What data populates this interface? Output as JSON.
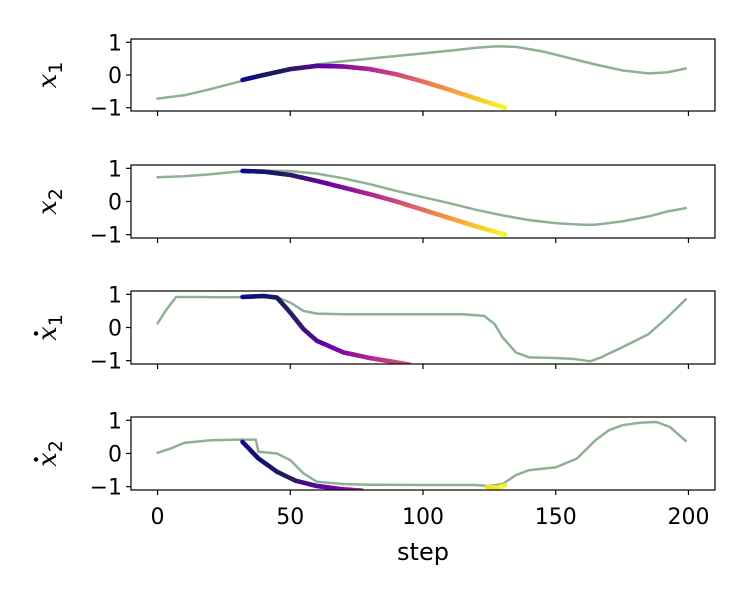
{
  "chart_data": {
    "type": "line",
    "layout": "4 stacked subplots with shared x axis",
    "xlabel": "step",
    "xlim": [
      -10,
      210
    ],
    "xticks": [
      0,
      50,
      100,
      150,
      200
    ],
    "ylim": [
      -1.1,
      1.1
    ],
    "yticks": [
      1,
      0,
      -1
    ],
    "ytick_labels": [
      "1",
      "0",
      "−1"
    ],
    "grid": false,
    "legend": "none",
    "colors": {
      "reference_line": "#8fb193",
      "prediction_colormap": [
        "#0d0887",
        "#1f1f57",
        "#6a00a8",
        "#b12a90",
        "#e16462",
        "#fca636",
        "#f0f921"
      ]
    },
    "subplots": [
      {
        "ylabel": "x1",
        "ylabel_main": "x",
        "ylabel_sub": "1",
        "ylabel_dot": false,
        "series": [
          {
            "role": "reference",
            "x": [
              0,
              10,
              20,
              30,
              40,
              50,
              60,
              70,
              80,
              90,
              100,
              110,
              120,
              128,
              135,
              145,
              155,
              165,
              175,
              185,
              192,
              199
            ],
            "y": [
              -0.72,
              -0.62,
              -0.43,
              -0.22,
              -0.02,
              0.15,
              0.32,
              0.42,
              0.5,
              0.58,
              0.66,
              0.74,
              0.83,
              0.88,
              0.86,
              0.72,
              0.52,
              0.32,
              0.14,
              0.05,
              0.08,
              0.2
            ]
          },
          {
            "role": "prediction",
            "x": [
              32,
              40,
              50,
              60,
              70,
              80,
              90,
              100,
              110,
              120,
              131
            ],
            "y": [
              -0.15,
              0.0,
              0.18,
              0.28,
              0.26,
              0.18,
              0.02,
              -0.2,
              -0.45,
              -0.72,
              -1.0
            ]
          }
        ]
      },
      {
        "ylabel": "x2",
        "ylabel_main": "x",
        "ylabel_sub": "2",
        "ylabel_dot": false,
        "series": [
          {
            "role": "reference",
            "x": [
              0,
              10,
              20,
              30,
              40,
              50,
              60,
              70,
              80,
              90,
              100,
              110,
              120,
              130,
              140,
              150,
              160,
              165,
              175,
              185,
              192,
              199
            ],
            "y": [
              0.73,
              0.76,
              0.82,
              0.9,
              0.93,
              0.92,
              0.84,
              0.7,
              0.52,
              0.32,
              0.13,
              -0.05,
              -0.25,
              -0.42,
              -0.56,
              -0.65,
              -0.7,
              -0.7,
              -0.6,
              -0.45,
              -0.3,
              -0.2
            ]
          },
          {
            "role": "prediction",
            "x": [
              32,
              40,
              50,
              60,
              70,
              80,
              90,
              100,
              110,
              120,
              131
            ],
            "y": [
              0.92,
              0.9,
              0.8,
              0.62,
              0.42,
              0.22,
              0.0,
              -0.25,
              -0.5,
              -0.75,
              -1.0
            ]
          }
        ]
      },
      {
        "ylabel": "ẋ1",
        "ylabel_main": "x",
        "ylabel_sub": "1",
        "ylabel_dot": true,
        "series": [
          {
            "role": "reference",
            "x": [
              0,
              3,
              7,
              15,
              25,
              35,
              45,
              50,
              55,
              60,
              70,
              80,
              100,
              115,
              123,
              127,
              130,
              135,
              140,
              150,
              157,
              163,
              167,
              175,
              185,
              192,
              199
            ],
            "y": [
              0.12,
              0.5,
              0.92,
              0.92,
              0.91,
              0.92,
              0.92,
              0.75,
              0.5,
              0.42,
              0.4,
              0.4,
              0.4,
              0.4,
              0.35,
              0.1,
              -0.3,
              -0.75,
              -0.9,
              -0.92,
              -0.95,
              -1.02,
              -0.9,
              -0.6,
              -0.2,
              0.3,
              0.85
            ]
          },
          {
            "role": "prediction",
            "x": [
              32,
              40,
              45,
              50,
              55,
              60,
              70,
              80,
              90,
              95
            ],
            "y": [
              0.92,
              0.95,
              0.9,
              0.45,
              -0.05,
              -0.4,
              -0.75,
              -0.92,
              -1.05,
              -1.12
            ]
          }
        ]
      },
      {
        "ylabel": "ẋ2",
        "ylabel_main": "x",
        "ylabel_sub": "2",
        "ylabel_dot": true,
        "series": [
          {
            "role": "reference",
            "x": [
              0,
              5,
              10,
              20,
              30,
              37,
              38,
              45,
              50,
              55,
              60,
              70,
              80,
              100,
              120,
              125,
              130,
              135,
              140,
              150,
              158,
              165,
              170,
              175,
              182,
              188,
              193,
              199
            ],
            "y": [
              0.02,
              0.15,
              0.32,
              0.4,
              0.42,
              0.42,
              0.05,
              0.0,
              -0.2,
              -0.6,
              -0.85,
              -0.92,
              -0.94,
              -0.95,
              -0.95,
              -0.98,
              -0.92,
              -0.65,
              -0.5,
              -0.42,
              -0.15,
              0.4,
              0.7,
              0.85,
              0.93,
              0.95,
              0.8,
              0.38
            ]
          },
          {
            "role": "prediction",
            "x": [
              32,
              38,
              45,
              52,
              60,
              70,
              77
            ],
            "y": [
              0.35,
              -0.15,
              -0.55,
              -0.82,
              -0.98,
              -1.08,
              -1.12
            ]
          },
          {
            "role": "prediction",
            "x": [
              124,
              128,
              131
            ],
            "y": [
              -1.0,
              -1.03,
              -0.96
            ]
          }
        ]
      }
    ]
  }
}
